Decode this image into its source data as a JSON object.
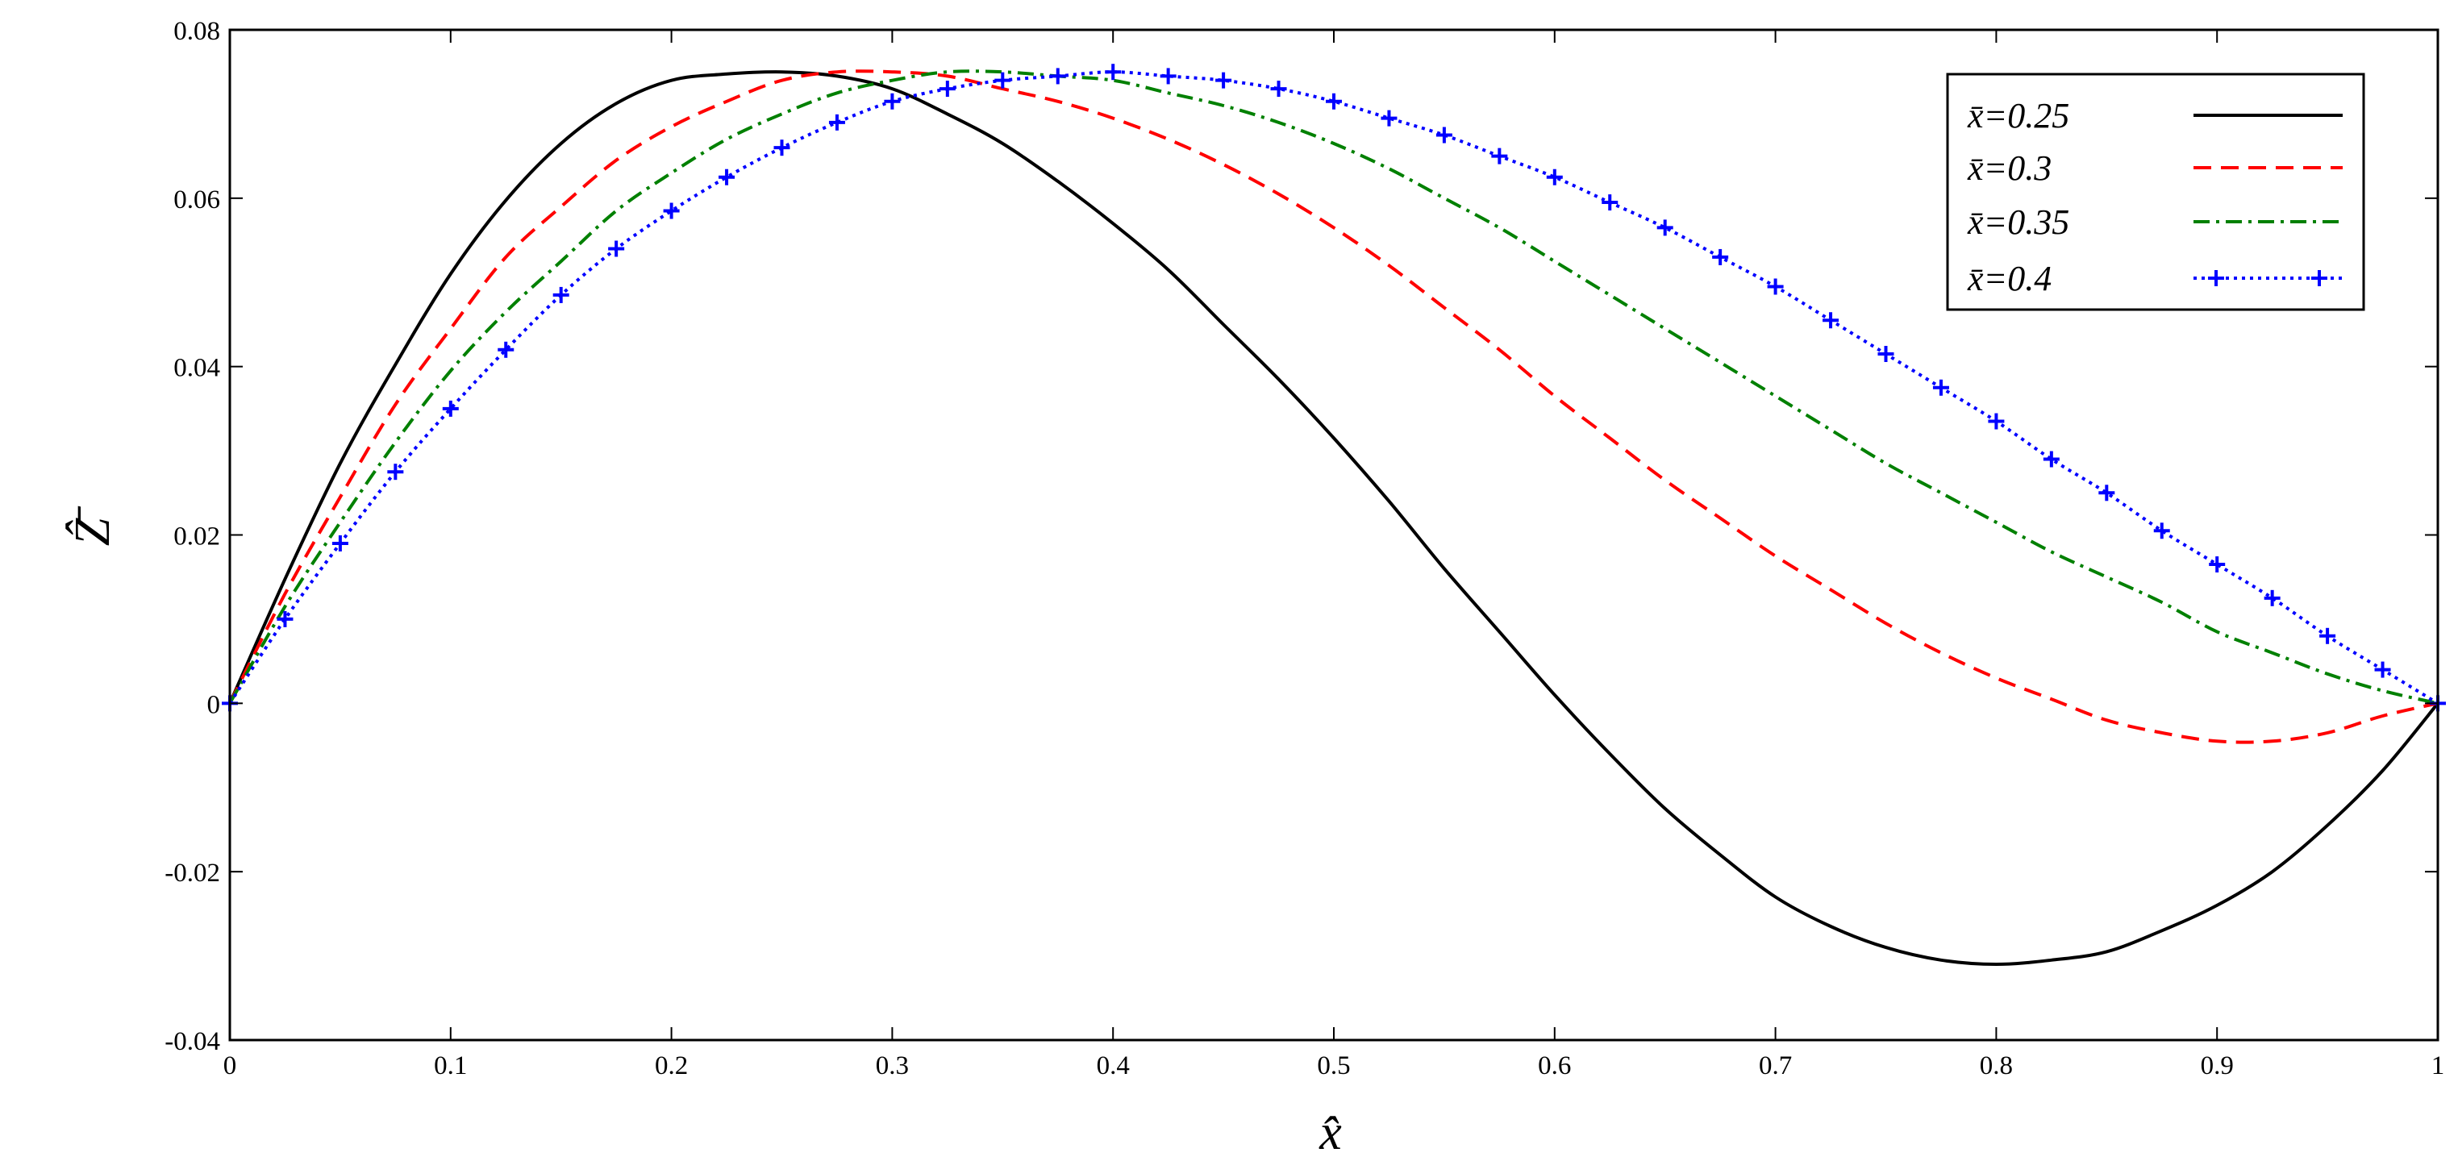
{
  "chart_data": {
    "type": "line",
    "title": "",
    "xlabel": "x̂",
    "ylabel": "Ẑ̄",
    "xlim": [
      0,
      1
    ],
    "ylim": [
      -0.04,
      0.08
    ],
    "x_ticks": [
      0,
      0.1,
      0.2,
      0.3,
      0.4,
      0.5,
      0.6,
      0.7,
      0.8,
      0.9,
      1
    ],
    "x_tick_labels": [
      "0",
      "0.1",
      "0.2",
      "0.3",
      "0.4",
      "0.5",
      "0.6",
      "0.7",
      "0.8",
      "0.9",
      "1"
    ],
    "y_ticks": [
      -0.04,
      -0.02,
      0,
      0.02,
      0.04,
      0.06,
      0.08
    ],
    "y_tick_labels": [
      "-0.04",
      "-0.02",
      "0",
      "0.02",
      "0.04",
      "0.06",
      "0.08"
    ],
    "grid": false,
    "legend_position": "top-right",
    "x": [
      0,
      0.025,
      0.05,
      0.075,
      0.1,
      0.125,
      0.15,
      0.175,
      0.2,
      0.225,
      0.25,
      0.275,
      0.3,
      0.325,
      0.35,
      0.375,
      0.4,
      0.425,
      0.45,
      0.475,
      0.5,
      0.525,
      0.55,
      0.575,
      0.6,
      0.625,
      0.65,
      0.675,
      0.7,
      0.725,
      0.75,
      0.775,
      0.8,
      0.825,
      0.85,
      0.875,
      0.9,
      0.925,
      0.95,
      0.975,
      1
    ],
    "series": [
      {
        "name": "x̄=0.25",
        "color": "#000000",
        "style": "solid",
        "values": [
          0,
          0.01475,
          0.0285,
          0.04025,
          0.051,
          0.05975,
          0.0665,
          0.07125,
          0.074,
          0.07475,
          0.075,
          0.0745,
          0.073,
          0.07,
          0.0665,
          0.062,
          0.057,
          0.0515,
          0.045,
          0.0385,
          0.0315,
          0.024,
          0.016,
          0.0085,
          0.001,
          -0.006,
          -0.0125,
          -0.018,
          -0.023,
          -0.0265,
          -0.029,
          -0.0305,
          -0.031,
          -0.0305,
          -0.0295,
          -0.027,
          -0.024,
          -0.02,
          -0.0145,
          -0.008,
          0
        ]
      },
      {
        "name": "x̄=0.3",
        "color": "#ff0000",
        "style": "dashed",
        "values": [
          0,
          0.013,
          0.0245,
          0.0355,
          0.0445,
          0.053,
          0.059,
          0.0645,
          0.0685,
          0.0715,
          0.074,
          0.075,
          0.075,
          0.0745,
          0.073,
          0.0715,
          0.0695,
          0.067,
          0.064,
          0.0605,
          0.0565,
          0.052,
          0.047,
          0.042,
          0.0365,
          0.0315,
          0.0265,
          0.022,
          0.0175,
          0.0135,
          0.0095,
          0.006,
          0.003,
          0.0005,
          -0.002,
          -0.0035,
          -0.0045,
          -0.0045,
          -0.0035,
          -0.0015,
          0
        ]
      },
      {
        "name": "x̄=0.35",
        "color": "#008000",
        "style": "dashdot",
        "values": [
          0,
          0.0115,
          0.0215,
          0.031,
          0.0395,
          0.0465,
          0.0525,
          0.0585,
          0.063,
          0.067,
          0.07,
          0.0725,
          0.074,
          0.075,
          0.075,
          0.0745,
          0.074,
          0.0725,
          0.071,
          0.069,
          0.0665,
          0.0635,
          0.06,
          0.0565,
          0.0525,
          0.0485,
          0.0445,
          0.0405,
          0.0365,
          0.0325,
          0.0285,
          0.025,
          0.0215,
          0.018,
          0.015,
          0.012,
          0.0085,
          0.006,
          0.0035,
          0.0015,
          0
        ]
      },
      {
        "name": "x̄=0.4",
        "color": "#0000ff",
        "style": "dotted-plus",
        "values": [
          0,
          0.01,
          0.019,
          0.0275,
          0.035,
          0.042,
          0.0485,
          0.054,
          0.0585,
          0.0625,
          0.066,
          0.069,
          0.0715,
          0.073,
          0.074,
          0.0745,
          0.075,
          0.0745,
          0.074,
          0.073,
          0.0715,
          0.0695,
          0.0675,
          0.065,
          0.0625,
          0.0595,
          0.0565,
          0.053,
          0.0495,
          0.0455,
          0.0415,
          0.0375,
          0.0335,
          0.029,
          0.025,
          0.0205,
          0.0165,
          0.0125,
          0.008,
          0.004,
          0
        ]
      }
    ]
  }
}
